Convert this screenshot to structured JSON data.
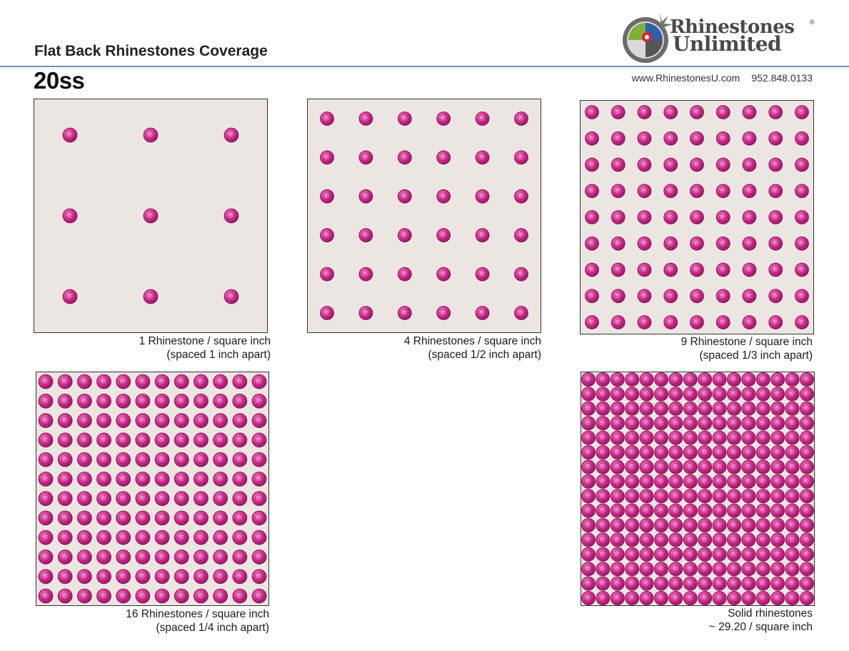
{
  "header": {
    "title": "Flat Back Rhinestones Coverage",
    "size_label": "20ss",
    "website": "www.RhinestonesU.com",
    "phone": "952.848.0133",
    "brand_line1": "Rhinestones",
    "brand_line2": "Unlimited",
    "registered_mark": "®",
    "accent_color": "#6f8fc4"
  },
  "colors": {
    "stone": "#cf2f8c",
    "stone_dark": "#8f1460",
    "stone_light": "#f39bd0",
    "panel_bg": "#ece6e2"
  },
  "panels": [
    {
      "id": "p1",
      "stones_per_row": 3,
      "stones_per_col": 3,
      "caption_line1": "1 Rhinestone / square inch",
      "caption_line2": "(spaced 1 inch apart)"
    },
    {
      "id": "p2",
      "stones_per_row": 6,
      "stones_per_col": 6,
      "caption_line1": "4 Rhinestones / square inch",
      "caption_line2": "(spaced 1/2 inch apart)"
    },
    {
      "id": "p3",
      "stones_per_row": 9,
      "stones_per_col": 9,
      "caption_line1": "9 Rhinestone / square inch",
      "caption_line2": "(spaced 1/3 inch apart)"
    },
    {
      "id": "p4",
      "stones_per_row": 12,
      "stones_per_col": 12,
      "caption_line1": "16 Rhinestones / square inch",
      "caption_line2": "(spaced 1/4 inch apart)"
    },
    {
      "id": "p5",
      "stones_per_row": 16,
      "stones_per_col": 16,
      "caption_line1": "Solid rhinestones",
      "caption_line2": "~ 29.20 / square inch"
    }
  ]
}
